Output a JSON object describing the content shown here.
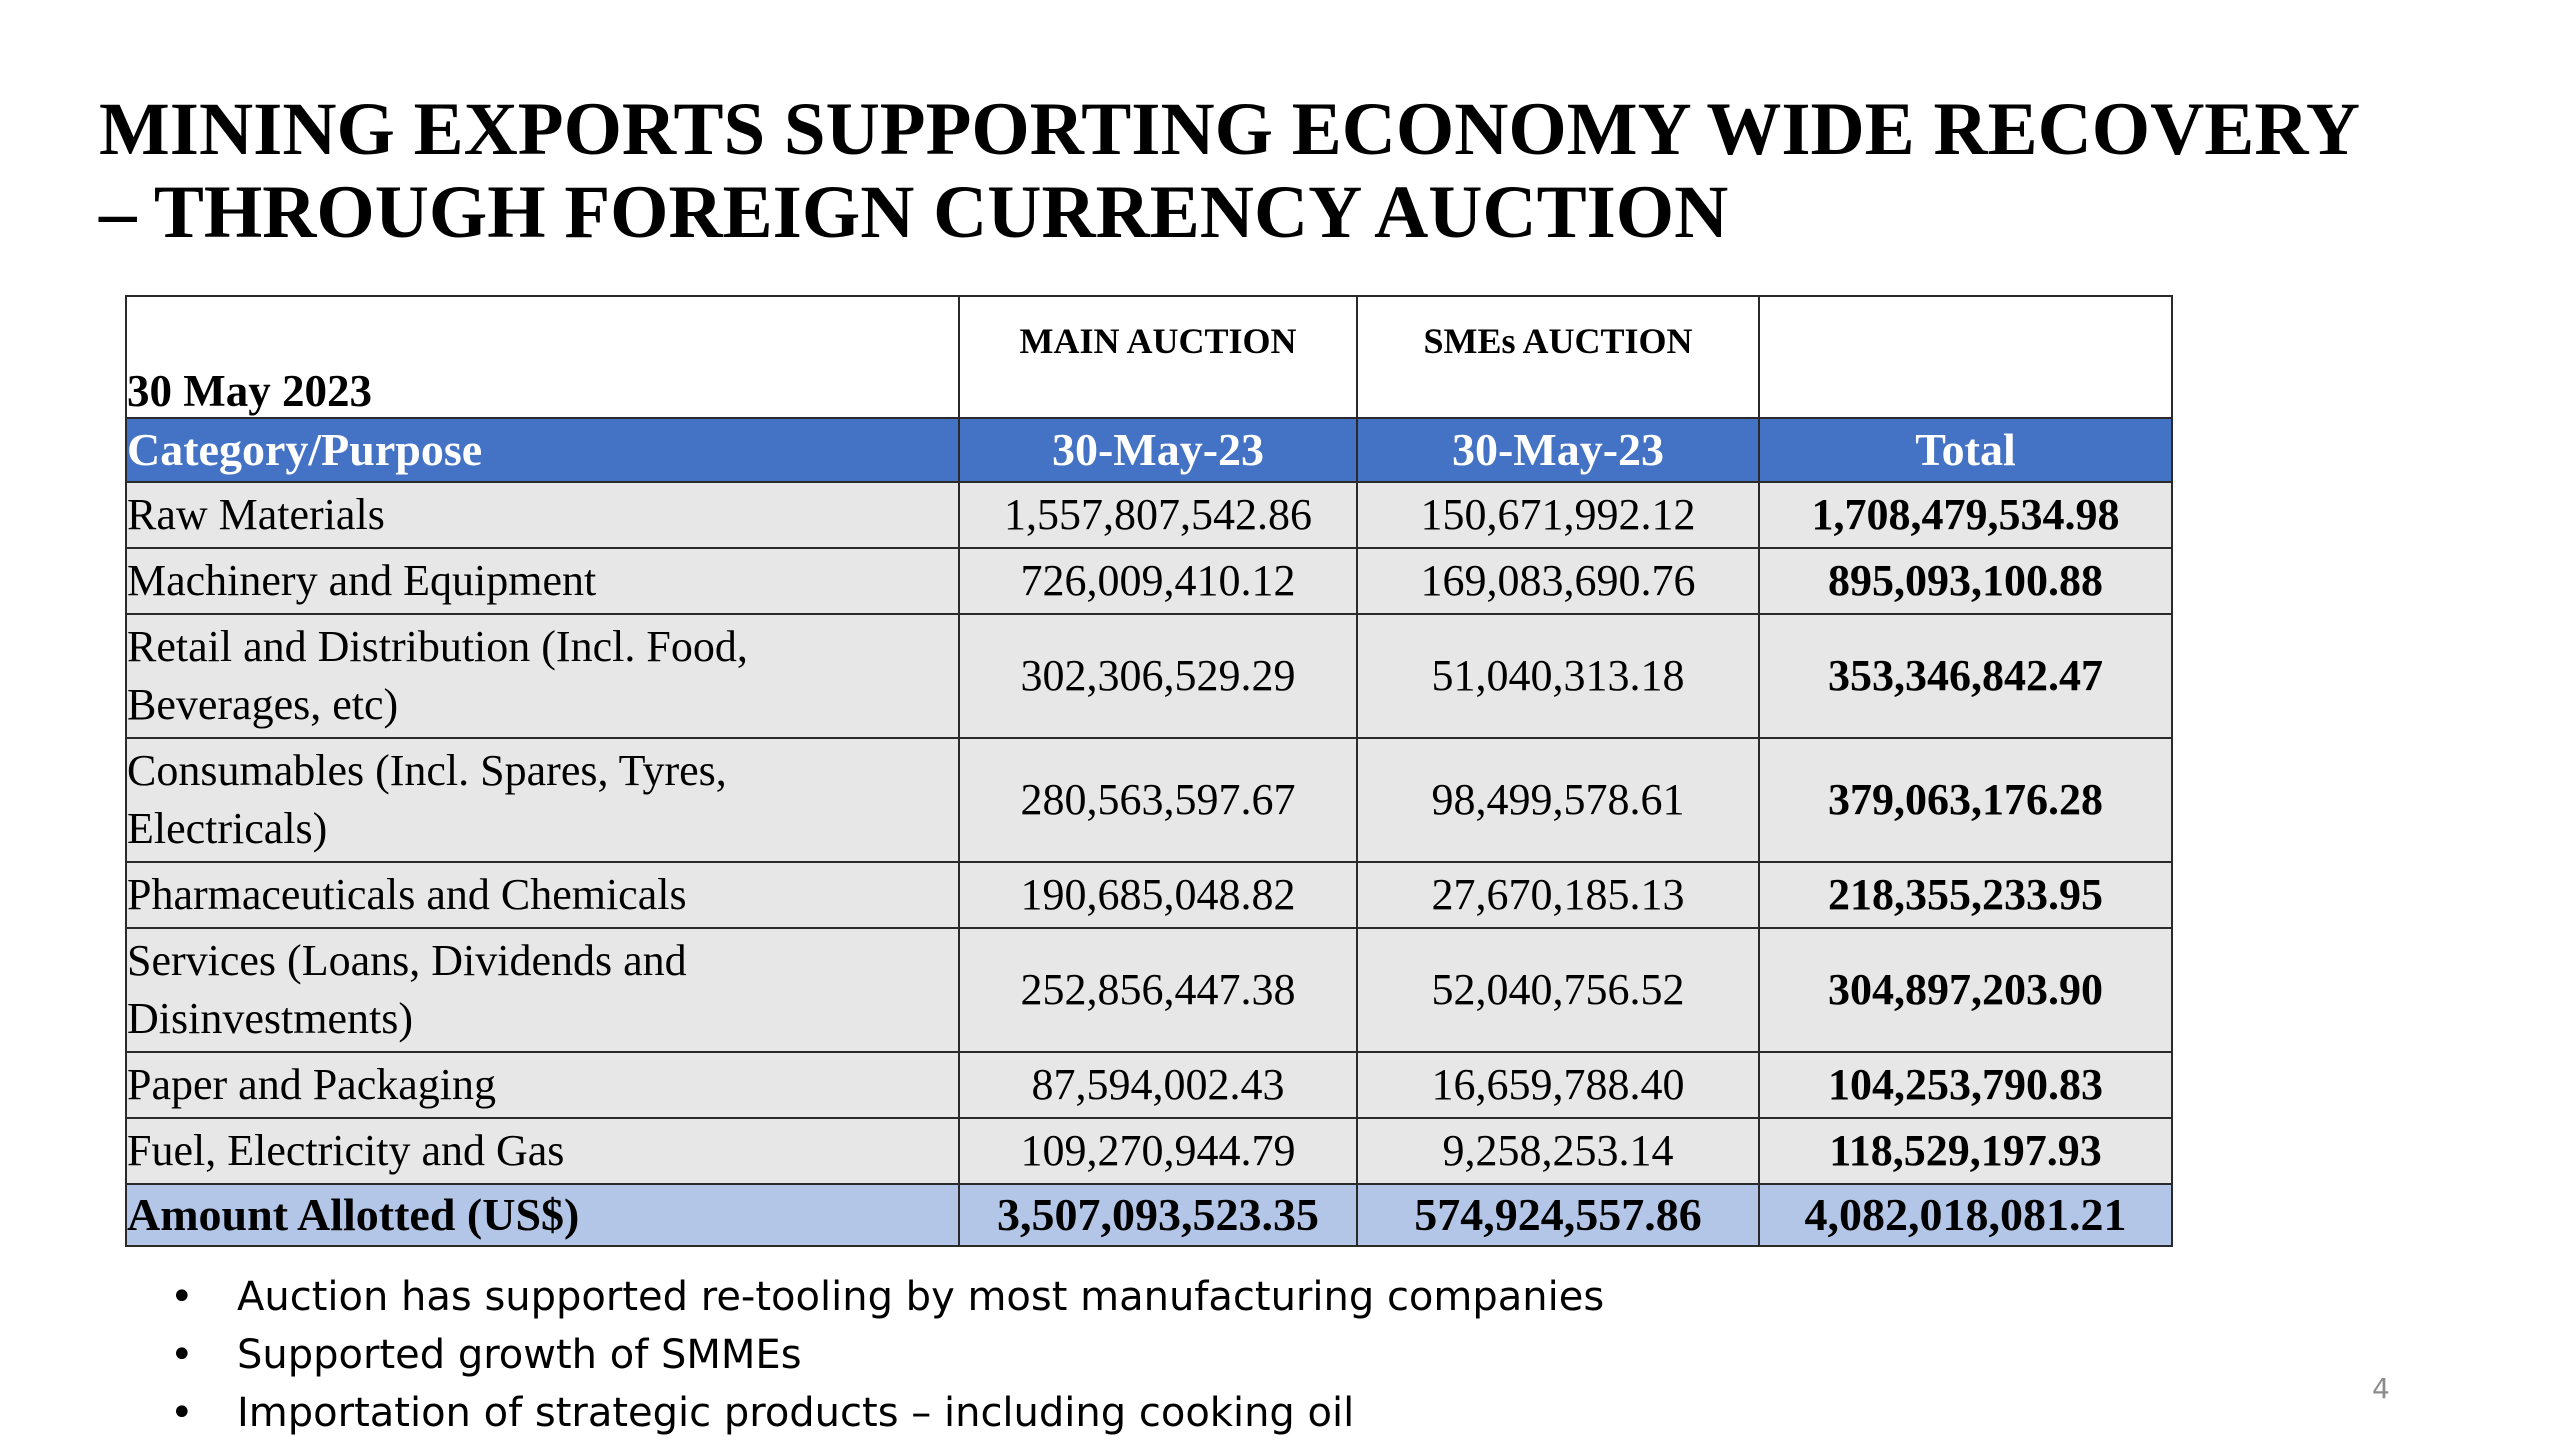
{
  "title": {
    "line1": "MINING EXPORTS SUPPORTING ECONOMY WIDE RECOVERY",
    "line2": "– THROUGH FOREIGN CURRENCY AUCTION"
  },
  "table": {
    "date_label": "30 May 2023",
    "auction_headers": [
      "MAIN AUCTION",
      "SMEs AUCTION",
      ""
    ],
    "column_headers": [
      "Category/Purpose",
      "30-May-23",
      "30-May-23",
      "Total"
    ],
    "rows": [
      {
        "category": "Raw Materials",
        "main": "1,557,807,542.86",
        "smes": "150,671,992.12",
        "total": "1,708,479,534.98"
      },
      {
        "category": "Machinery and Equipment",
        "main": "726,009,410.12",
        "smes": "169,083,690.76",
        "total": "895,093,100.88"
      },
      {
        "category_line1": "Retail and Distribution (Incl. Food,",
        "category_line2": "Beverages, etc)",
        "main": "302,306,529.29",
        "smes": "51,040,313.18",
        "total": "353,346,842.47"
      },
      {
        "category_line1": "Consumables (Incl. Spares, Tyres,",
        "category_line2": "Electricals)",
        "main": "280,563,597.67",
        "smes": "98,499,578.61",
        "total": "379,063,176.28"
      },
      {
        "category": "Pharmaceuticals and Chemicals",
        "main": "190,685,048.82",
        "smes": "27,670,185.13",
        "total": "218,355,233.95"
      },
      {
        "category_line1": "Services (Loans, Dividends and",
        "category_line2": "Disinvestments)",
        "main": "252,856,447.38",
        "smes": "52,040,756.52",
        "total": "304,897,203.90"
      },
      {
        "category": "Paper and Packaging",
        "main": "87,594,002.43",
        "smes": "16,659,788.40",
        "total": "104,253,790.83"
      },
      {
        "category": "Fuel, Electricity and Gas",
        "main": "109,270,944.79",
        "smes": "9,258,253.14",
        "total": "118,529,197.93"
      }
    ],
    "footer": {
      "label": "Amount Allotted (US$)",
      "main": "3,507,093,523.35",
      "smes": "574,924,557.86",
      "total": "4,082,018,081.21"
    },
    "colors": {
      "header_blue": "#4472c4",
      "row_grey": "#e7e7e7",
      "footer_blue": "#b4c6e7"
    }
  },
  "notes": {
    "bullet": "•",
    "items": [
      "Auction has supported re-tooling by most manufacturing companies",
      "Supported growth of SMMEs",
      "Importation of strategic products – including cooking oil"
    ]
  },
  "page_number": "4"
}
